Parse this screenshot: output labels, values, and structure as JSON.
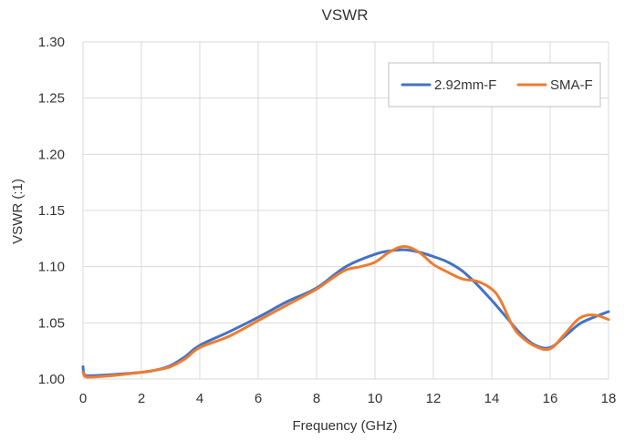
{
  "chart_data": {
    "type": "line",
    "title": "VSWR",
    "xlabel": "Frequency (GHz)",
    "ylabel": "VSWR (:1)",
    "xlim": [
      0,
      18
    ],
    "ylim": [
      1.0,
      1.3
    ],
    "xticks": [
      0,
      2,
      4,
      6,
      8,
      10,
      12,
      14,
      16,
      18
    ],
    "xtick_labels": [
      "0",
      "2",
      "4",
      "6",
      "8",
      "10",
      "12",
      "14",
      "16",
      "18"
    ],
    "yticks": [
      1.0,
      1.05,
      1.1,
      1.15,
      1.2,
      1.25,
      1.3
    ],
    "ytick_labels": [
      "1.00",
      "1.05",
      "1.10",
      "1.15",
      "1.20",
      "1.25",
      "1.30"
    ],
    "grid": true,
    "legend_position": "top-right",
    "series": [
      {
        "name": "2.92mm-F",
        "color": "#4472c4",
        "points": [
          [
            0.0,
            1.011
          ],
          [
            0.05,
            1.004
          ],
          [
            0.3,
            1.003
          ],
          [
            1,
            1.004
          ],
          [
            2,
            1.006
          ],
          [
            2.5,
            1.008
          ],
          [
            3,
            1.012
          ],
          [
            3.5,
            1.02
          ],
          [
            4,
            1.03
          ],
          [
            5,
            1.042
          ],
          [
            6,
            1.055
          ],
          [
            7,
            1.069
          ],
          [
            8,
            1.081
          ],
          [
            9,
            1.1
          ],
          [
            10,
            1.111
          ],
          [
            10.5,
            1.114
          ],
          [
            11,
            1.115
          ],
          [
            11.5,
            1.113
          ],
          [
            12,
            1.109
          ],
          [
            12.5,
            1.104
          ],
          [
            13,
            1.096
          ],
          [
            13.5,
            1.084
          ],
          [
            14,
            1.07
          ],
          [
            14.5,
            1.055
          ],
          [
            15,
            1.04
          ],
          [
            15.5,
            1.03
          ],
          [
            16,
            1.028
          ],
          [
            16.5,
            1.038
          ],
          [
            17,
            1.049
          ],
          [
            17.5,
            1.055
          ],
          [
            18,
            1.06
          ]
        ]
      },
      {
        "name": "SMA-F",
        "color": "#ed7d31",
        "points": [
          [
            0.0,
            1.006
          ],
          [
            0.1,
            1.002
          ],
          [
            0.5,
            1.002
          ],
          [
            1,
            1.003
          ],
          [
            2,
            1.006
          ],
          [
            2.5,
            1.008
          ],
          [
            3,
            1.011
          ],
          [
            3.5,
            1.018
          ],
          [
            4,
            1.028
          ],
          [
            5,
            1.038
          ],
          [
            6,
            1.052
          ],
          [
            7,
            1.066
          ],
          [
            8,
            1.08
          ],
          [
            8.5,
            1.089
          ],
          [
            9,
            1.097
          ],
          [
            9.5,
            1.1
          ],
          [
            10,
            1.104
          ],
          [
            10.5,
            1.113
          ],
          [
            11,
            1.118
          ],
          [
            11.5,
            1.113
          ],
          [
            12,
            1.102
          ],
          [
            12.5,
            1.095
          ],
          [
            13,
            1.089
          ],
          [
            13.5,
            1.087
          ],
          [
            14,
            1.08
          ],
          [
            14.3,
            1.07
          ],
          [
            14.7,
            1.048
          ],
          [
            15,
            1.038
          ],
          [
            15.5,
            1.029
          ],
          [
            16,
            1.027
          ],
          [
            16.5,
            1.04
          ],
          [
            17,
            1.054
          ],
          [
            17.5,
            1.057
          ],
          [
            18,
            1.053
          ]
        ]
      }
    ]
  }
}
